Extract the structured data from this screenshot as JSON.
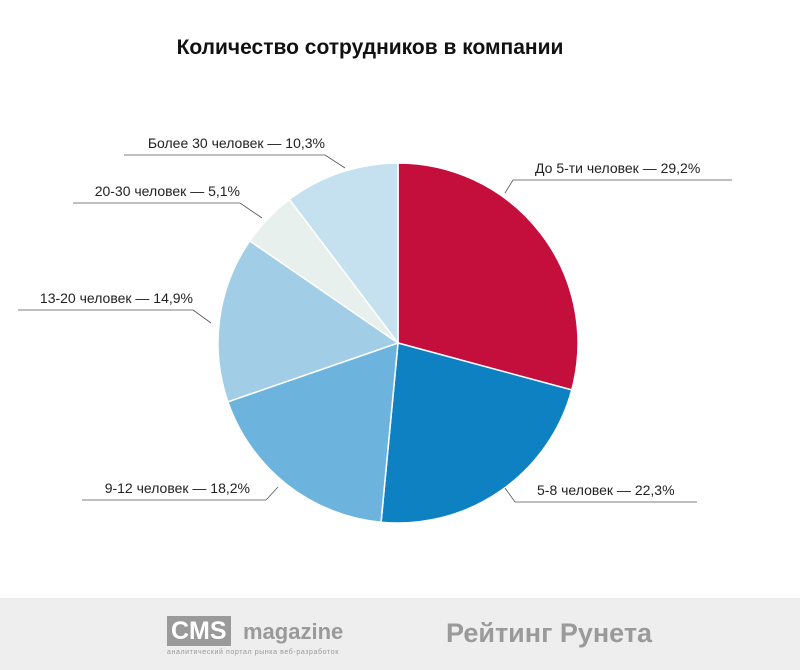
{
  "chart_data": {
    "type": "pie",
    "title": "Количество сотрудников в компании",
    "slices": [
      {
        "label": "До 5-ти человек — 29,2%",
        "value": 29.2,
        "color": "#c40e3c"
      },
      {
        "label": "5-8 человек — 22,3%",
        "value": 22.3,
        "color": "#0e81c3"
      },
      {
        "label": "9-12 человек — 18,2%",
        "value": 18.2,
        "color": "#6cb3dd"
      },
      {
        "label": "13-20 человек — 14,9%",
        "value": 14.9,
        "color": "#a2cde7"
      },
      {
        "label": "20-30 человек — 5,1%",
        "value": 5.1,
        "color": "#e7f0ed"
      },
      {
        "label": "Более 30 человек — 10,3%",
        "value": 10.3,
        "color": "#c5e1f0"
      }
    ]
  },
  "footer": {
    "logo_cms": "CMS",
    "logo_magazine": "magazine",
    "logo_cms_tagline": "аналитический портал рынка веб-разработок",
    "logo_rating": "Рейтинг Рунета"
  }
}
